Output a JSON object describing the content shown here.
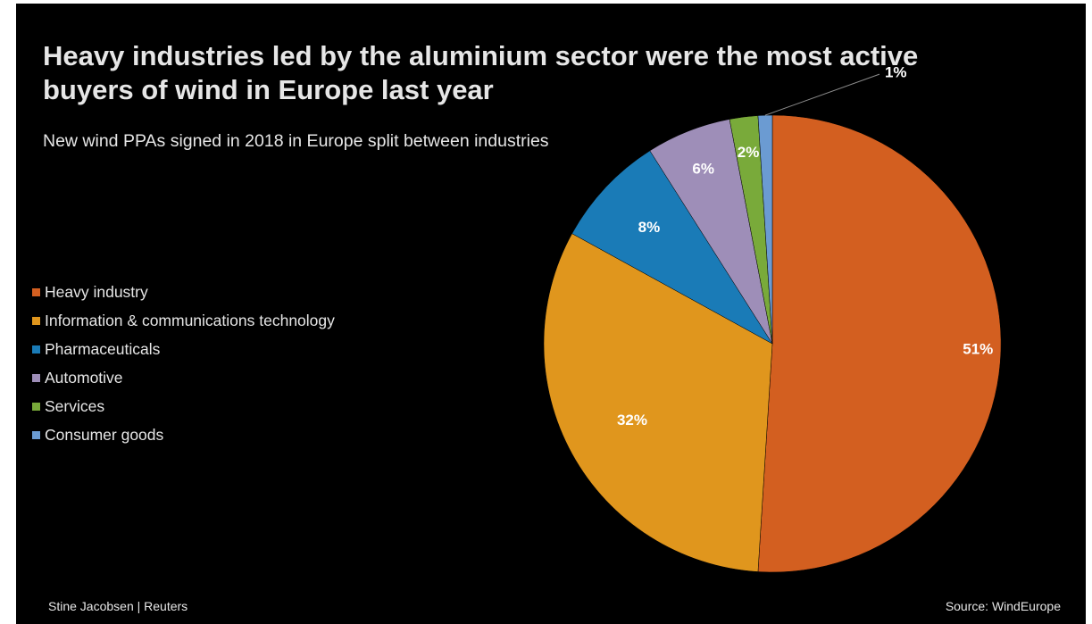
{
  "title": "Heavy industries led by the aluminium sector were the most active buyers of wind in Europe last year",
  "subtitle": "New wind PPAs signed in 2018 in Europe split between industries",
  "byline": "Stine Jacobsen | Reuters",
  "source": "Source: WindEurope",
  "colors": {
    "background": "#000000",
    "text": "#e6e6e6"
  },
  "chart_data": {
    "type": "pie",
    "title": "Heavy industries led by the aluminium sector were the most active buyers of wind in Europe last year",
    "subtitle": "New wind PPAs signed in 2018 in Europe split between industries",
    "legend_position": "left",
    "start_angle_deg": 0,
    "direction": "clockwise",
    "series": [
      {
        "slices": [
          {
            "name": "Heavy industry",
            "value": 51,
            "label": "51%",
            "color": "#d35f20"
          },
          {
            "name": "Information & communications technology",
            "value": 32,
            "label": "32%",
            "color": "#e0961d"
          },
          {
            "name": "Pharmaceuticals",
            "value": 8,
            "label": "8%",
            "color": "#1a7bb7"
          },
          {
            "name": "Automotive",
            "value": 6,
            "label": "6%",
            "color": "#9e8eb8"
          },
          {
            "name": "Services",
            "value": 2,
            "label": "2%",
            "color": "#79aa3a"
          },
          {
            "name": "Consumer goods",
            "value": 1,
            "label": "1%",
            "color": "#6b9bd2"
          }
        ]
      }
    ]
  }
}
